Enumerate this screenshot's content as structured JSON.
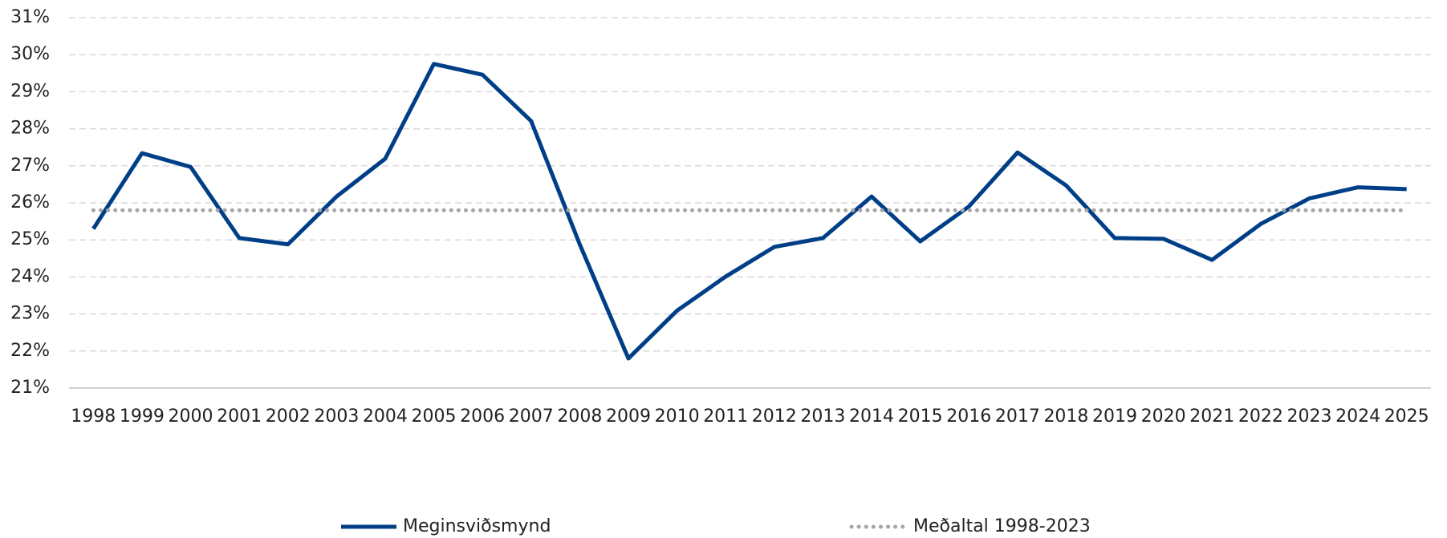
{
  "chart_data": {
    "type": "line",
    "categories": [
      "1998",
      "1999",
      "2000",
      "2001",
      "2002",
      "2003",
      "2004",
      "2005",
      "2006",
      "2007",
      "2008",
      "2009",
      "2010",
      "2011",
      "2012",
      "2013",
      "2014",
      "2015",
      "2016",
      "2017",
      "2018",
      "2019",
      "2020",
      "2021",
      "2022",
      "2023",
      "2024",
      "2025"
    ],
    "series": [
      {
        "name": "Meginsviðsmynd",
        "color": "#003f87",
        "style": "solid",
        "values": [
          25.3,
          27.34,
          26.97,
          25.05,
          24.88,
          26.17,
          27.19,
          29.75,
          29.46,
          28.21,
          24.88,
          21.8,
          23.09,
          24.01,
          24.81,
          25.05,
          26.17,
          24.96,
          25.9,
          27.36,
          26.47,
          25.05,
          25.03,
          24.46,
          25.43,
          26.12,
          26.42,
          26.37
        ]
      },
      {
        "name": "Meðaltal 1998-2023",
        "color": "#a6a6a6",
        "style": "dotted",
        "values": [
          25.8,
          25.8,
          25.8,
          25.8,
          25.8,
          25.8,
          25.8,
          25.8,
          25.8,
          25.8,
          25.8,
          25.8,
          25.8,
          25.8,
          25.8,
          25.8,
          25.8,
          25.8,
          25.8,
          25.8,
          25.8,
          25.8,
          25.8,
          25.8,
          25.8,
          25.8,
          25.8,
          25.8
        ]
      }
    ],
    "ylim": [
      21,
      31
    ],
    "yticks": [
      {
        "value": 21,
        "label": "21%"
      },
      {
        "value": 22,
        "label": "22%"
      },
      {
        "value": 23,
        "label": "23%"
      },
      {
        "value": 24,
        "label": "24%"
      },
      {
        "value": 25,
        "label": "25%"
      },
      {
        "value": 26,
        "label": "26%"
      },
      {
        "value": 27,
        "label": "27%"
      },
      {
        "value": 28,
        "label": "28%"
      },
      {
        "value": 29,
        "label": "29%"
      },
      {
        "value": 30,
        "label": "30%"
      },
      {
        "value": 31,
        "label": "31%"
      }
    ],
    "grid": true,
    "legend": "bottom"
  }
}
